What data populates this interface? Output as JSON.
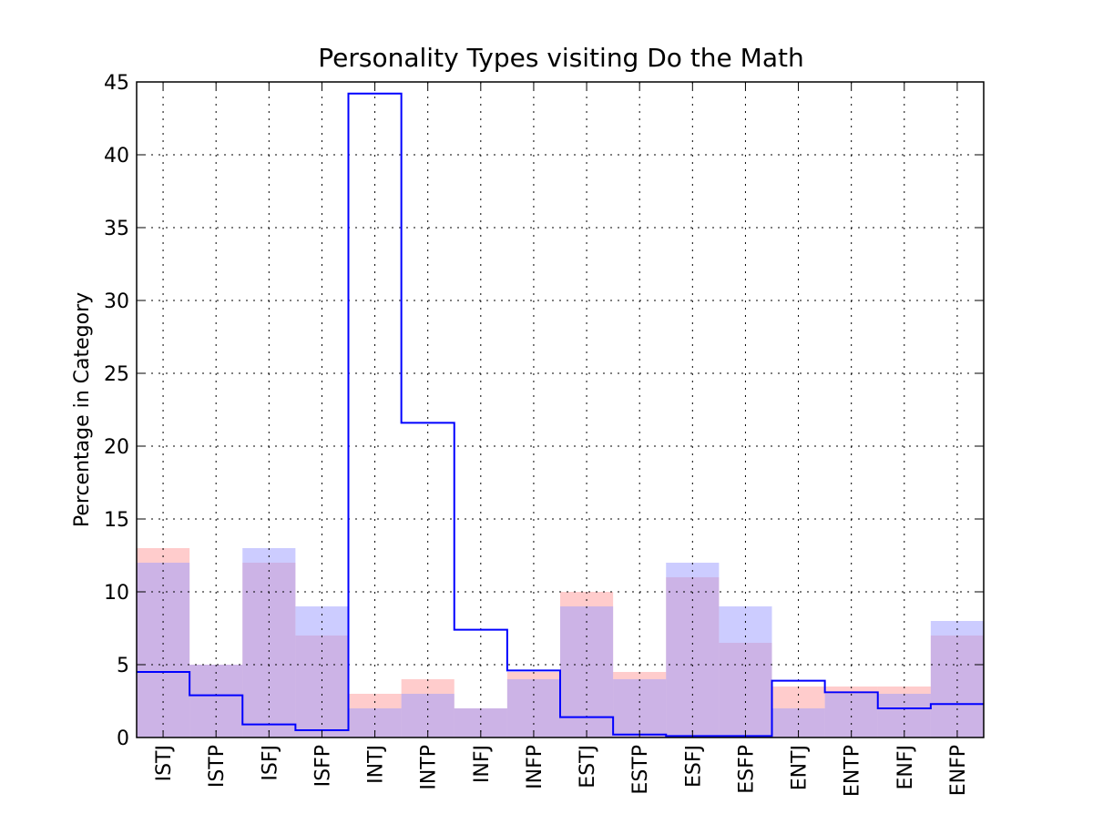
{
  "chart_data": {
    "type": "bar",
    "title": "Personality Types visiting Do the Math",
    "xlabel": "",
    "ylabel": "Percentage in Category",
    "ylim": [
      0,
      45
    ],
    "yticks": [
      0,
      5,
      10,
      15,
      20,
      25,
      30,
      35,
      40,
      45
    ],
    "grid": true,
    "categories": [
      "ISTJ",
      "ISTP",
      "ISFJ",
      "ISFP",
      "INTJ",
      "INTP",
      "INFJ",
      "INFP",
      "ESTJ",
      "ESTP",
      "ESFJ",
      "ESFP",
      "ENTJ",
      "ENTP",
      "ENFJ",
      "ENFP"
    ],
    "series": [
      {
        "name": "red-fill",
        "style": "filled",
        "color": "#ff9999",
        "values": [
          13,
          5,
          12,
          7,
          3,
          4,
          2,
          4.5,
          10,
          4.5,
          11,
          6.5,
          3.5,
          3.5,
          3.5,
          7
        ]
      },
      {
        "name": "blue-fill",
        "style": "filled",
        "color": "#9999ff",
        "values": [
          12,
          5,
          13,
          9,
          2,
          3,
          2,
          4,
          9,
          4,
          12,
          9,
          2,
          3,
          3,
          8
        ]
      },
      {
        "name": "blue-step",
        "style": "step",
        "color": "#0000ff",
        "values": [
          4.5,
          2.9,
          0.9,
          0.5,
          44.2,
          21.6,
          7.4,
          4.6,
          1.4,
          0.2,
          0.1,
          0.1,
          3.9,
          3.1,
          2.0,
          2.3
        ]
      }
    ]
  }
}
